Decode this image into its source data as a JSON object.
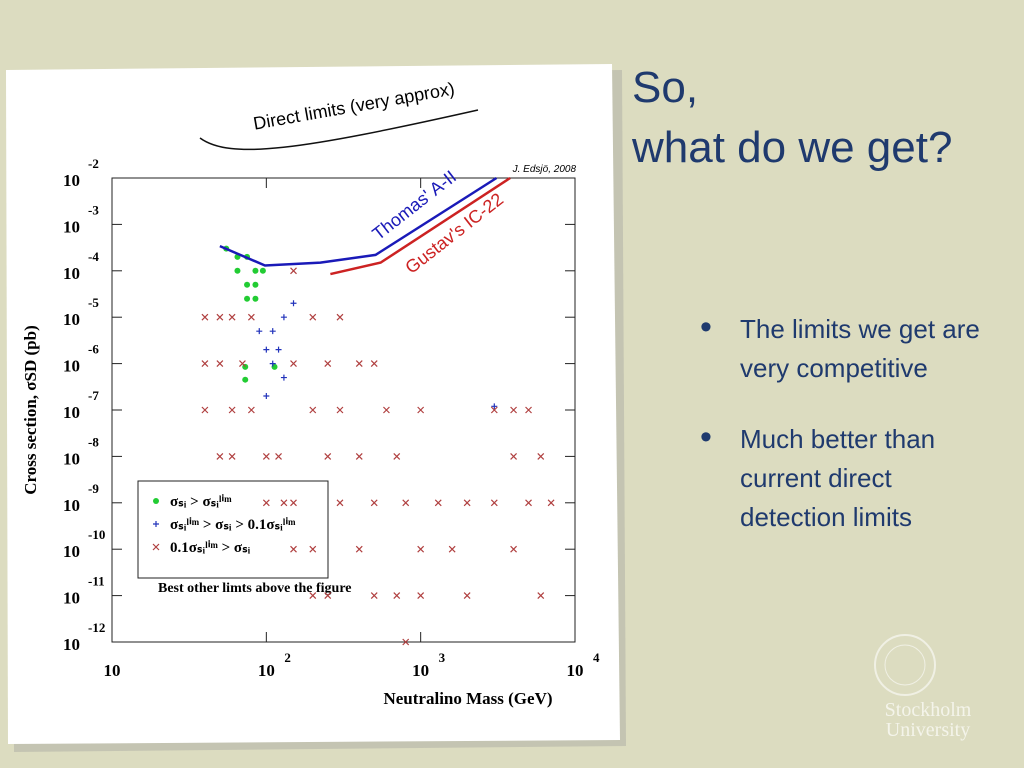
{
  "slide": {
    "title_lines": [
      "So,",
      "what do we get?"
    ],
    "bullets": [
      "The limits we get are very competitive",
      "Much better than current direct detection limits"
    ],
    "logo": [
      "Stockholm",
      "University"
    ]
  },
  "chart_data": {
    "type": "scatter",
    "x_label": "Neutralino Mass (GeV)",
    "y_label": "Cross section, σSD (pb)",
    "log_x": true,
    "log_y": true,
    "xlim": [
      10,
      10000
    ],
    "ylim": [
      1e-12,
      0.01
    ],
    "xticks": [
      10,
      {
        "value": 100,
        "label": "10",
        "exponent": "2"
      },
      {
        "value": 1000,
        "label": "10",
        "exponent": "3"
      },
      {
        "value": 10000,
        "label": "10",
        "exponent": "4"
      }
    ],
    "yticks": [
      {
        "value": 0.01,
        "label": "10",
        "exponent": "-2"
      },
      {
        "value": 0.001,
        "label": "10",
        "exponent": "-3"
      },
      {
        "value": 0.0001,
        "label": "10",
        "exponent": "-4"
      },
      {
        "value": 1e-05,
        "label": "10",
        "exponent": "-5"
      },
      {
        "value": 1e-06,
        "label": "10",
        "exponent": "-6"
      },
      {
        "value": 1e-07,
        "label": "10",
        "exponent": "-7"
      },
      {
        "value": 1e-08,
        "label": "10",
        "exponent": "-8"
      },
      {
        "value": 1e-09,
        "label": "10",
        "exponent": "-9"
      },
      {
        "value": 1e-10,
        "label": "10",
        "exponent": "-10"
      },
      {
        "value": 1e-11,
        "label": "10",
        "exponent": "-11"
      },
      {
        "value": 1e-12,
        "label": "10",
        "exponent": "-12"
      }
    ],
    "grid": false,
    "series": [
      {
        "name": "σₛᵢ > σₛᵢˡⁱᵐ",
        "color": "#22cc33",
        "marker": "circle",
        "x": [
          55,
          65,
          75,
          85,
          95,
          65,
          75,
          85,
          75,
          85,
          73,
          73,
          113
        ],
        "values": [
          0.0003,
          0.0002,
          0.0002,
          0.0001,
          0.0001,
          0.0001,
          5e-05,
          5e-05,
          2.5e-05,
          2.5e-05,
          8.5e-07,
          4.5e-07,
          8.5e-07
        ]
      },
      {
        "name": "σₛᵢˡⁱᵐ > σₛᵢ > 0.1σₛᵢˡⁱᵐ",
        "color": "#2233bb",
        "marker": "plus",
        "x": [
          90,
          110,
          130,
          150,
          100,
          120,
          110,
          130,
          100,
          3000
        ],
        "values": [
          5e-06,
          5e-06,
          1e-05,
          2e-05,
          2e-06,
          2e-06,
          1e-06,
          5e-07,
          2e-07,
          1.2e-07
        ]
      },
      {
        "name": "0.1σₛᵢˡⁱᵐ > σₛᵢ",
        "color": "#b04040",
        "marker": "cross",
        "x": [
          40,
          40,
          40,
          50,
          50,
          50,
          60,
          60,
          60,
          70,
          80,
          80,
          100,
          100,
          120,
          130,
          150,
          150,
          150,
          150,
          200,
          200,
          200,
          200,
          250,
          250,
          250,
          300,
          300,
          300,
          400,
          400,
          400,
          500,
          500,
          500,
          600,
          700,
          700,
          800,
          800,
          1000,
          1000,
          1000,
          1300,
          1600,
          2000,
          2000,
          3000,
          3000,
          4000,
          4000,
          4000,
          5000,
          5000,
          6000,
          6000,
          7000
        ],
        "values": [
          1e-05,
          1e-06,
          1e-07,
          1e-05,
          1e-06,
          1e-08,
          1e-05,
          1e-07,
          1e-08,
          1e-06,
          1e-05,
          1e-07,
          1e-08,
          1e-09,
          1e-08,
          1e-09,
          0.0001,
          1e-06,
          1e-09,
          1e-10,
          1e-05,
          1e-07,
          1e-10,
          1e-11,
          1e-06,
          1e-08,
          1e-11,
          1e-05,
          1e-07,
          1e-09,
          1e-06,
          1e-08,
          1e-10,
          1e-06,
          1e-09,
          1e-11,
          1e-07,
          1e-08,
          1e-11,
          1e-09,
          1e-12,
          1e-07,
          1e-10,
          1e-11,
          1e-09,
          1e-10,
          1e-09,
          1e-11,
          1e-07,
          1e-09,
          1e-07,
          1e-08,
          1e-10,
          1e-07,
          1e-09,
          1e-08,
          1e-11,
          1e-09
        ]
      }
    ],
    "lines": [
      {
        "label": "Thomas' A-II",
        "color": "#1a1ab8",
        "x": [
          50,
          98,
          224,
          510,
          3100
        ],
        "values": [
          0.00034,
          0.00013,
          0.00015,
          0.00022,
          0.01
        ]
      },
      {
        "label": "Gustav's IC-22",
        "color": "#cc2222",
        "x": [
          260,
          550,
          3800
        ],
        "values": [
          8.5e-05,
          0.00015,
          0.01
        ]
      }
    ],
    "annotations": [
      "Direct limits (very approx)",
      "J. Edsjö, 2008",
      "Best other limts above the figure"
    ]
  }
}
